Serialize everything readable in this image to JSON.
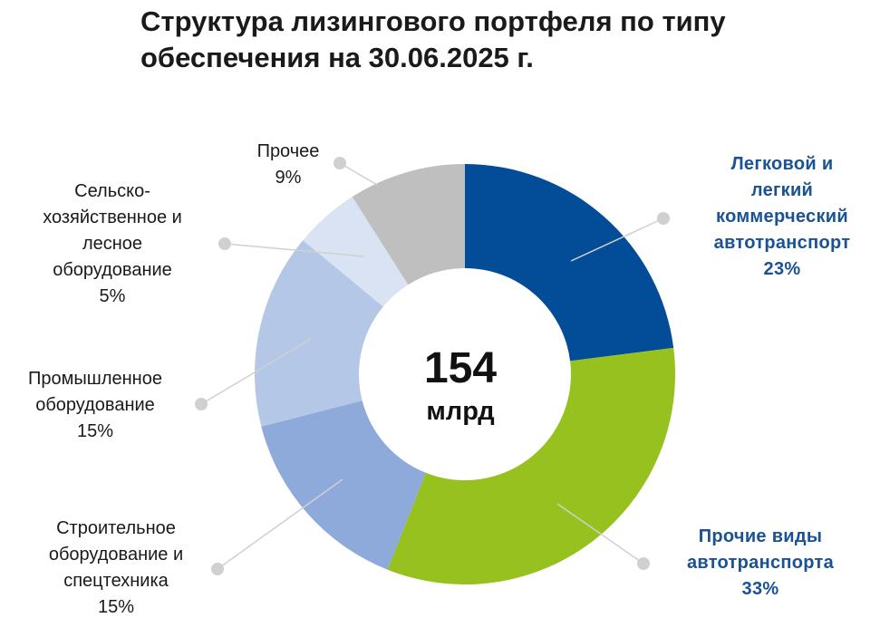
{
  "title": {
    "line1": "Структура лизингового портфеля по типу",
    "line2": "обеспечения на 30.06.2025 г."
  },
  "center": {
    "value": "154",
    "unit": "млрд"
  },
  "chart_data": {
    "type": "pie",
    "title": "Структура лизингового портфеля по типу обеспечения на 30.06.2025 г.",
    "total": "154 млрд",
    "unit": "%",
    "slices": [
      {
        "name": "Легковой и легкий коммерческий автотранспорт",
        "value": 23,
        "color": "#024c98",
        "label_lines": [
          "Легковой и",
          "легкий",
          "коммерческий",
          "автотранспорт",
          "23%"
        ]
      },
      {
        "name": "Прочие виды автотранспорта",
        "value": 33,
        "color": "#96c11f",
        "label_lines": [
          "Прочие виды",
          "автотранспорта",
          "33%"
        ]
      },
      {
        "name": "Строительное оборудование и спецтехника",
        "value": 15,
        "color": "#8eaadb",
        "label_lines": [
          "Строительное",
          "оборудование и",
          "спецтехника",
          "15%"
        ]
      },
      {
        "name": "Промышленное оборудование",
        "value": 15,
        "color": "#b4c7e7",
        "label_lines": [
          "Промышленное",
          "оборудование",
          "15%"
        ]
      },
      {
        "name": "Сельскохозяйственное и лесное оборудование",
        "value": 5,
        "color": "#dae3f3",
        "label_lines": [
          "Сельско-",
          "хозяйственное и",
          "лесное",
          "оборудование",
          "5%"
        ]
      },
      {
        "name": "Прочее",
        "value": 9,
        "color": "#bfbfbf",
        "label_lines": [
          "Прочее",
          "9%"
        ]
      }
    ],
    "leader_line_color": "#d0d0d0",
    "leader_dot_color": "#d0d0d0"
  }
}
